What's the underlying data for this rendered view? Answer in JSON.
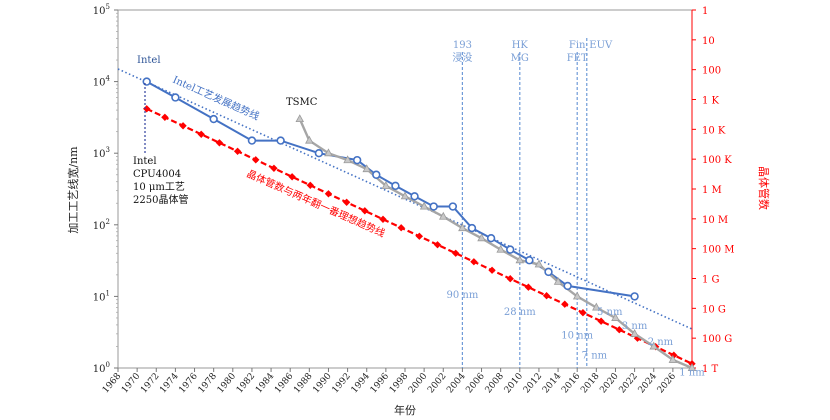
{
  "chart_data": {
    "type": "line",
    "xlabel": "年份",
    "ylabel_left": "加工工艺线宽/nm",
    "ylabel_right": "晶体管数",
    "xlim": [
      1968,
      2028
    ],
    "ylim_log10": [
      0,
      5
    ],
    "x_ticks": [
      "1968",
      "1970",
      "1972",
      "1974",
      "1976",
      "1978",
      "1980",
      "1982",
      "1984",
      "1986",
      "1988",
      "1990",
      "1992",
      "1994",
      "1996",
      "1998",
      "2000",
      "2002",
      "2004",
      "2006",
      "2008",
      "2010",
      "2012",
      "2014",
      "2016",
      "2018",
      "2020",
      "2022",
      "2024",
      "2026"
    ],
    "y_ticks_left": [
      {
        "base": "10",
        "exp": "0",
        "log": 0
      },
      {
        "base": "10",
        "exp": "1",
        "log": 1
      },
      {
        "base": "10",
        "exp": "2",
        "log": 2
      },
      {
        "base": "10",
        "exp": "3",
        "log": 3
      },
      {
        "base": "10",
        "exp": "4",
        "log": 4
      },
      {
        "base": "10",
        "exp": "5",
        "log": 5
      }
    ],
    "y_ticks_right": [
      {
        "label": "1",
        "log": 5
      },
      {
        "label": "10",
        "log": 4.5833
      },
      {
        "label": "100",
        "log": 4.1667
      },
      {
        "label": "1 K",
        "log": 3.75
      },
      {
        "label": "10 K",
        "log": 3.3333
      },
      {
        "label": "100 K",
        "log": 2.9167
      },
      {
        "label": "1 M",
        "log": 2.5
      },
      {
        "label": "10 M",
        "log": 2.0833
      },
      {
        "label": "100 M",
        "log": 1.6667
      },
      {
        "label": "1 G",
        "log": 1.25
      },
      {
        "label": "10 G",
        "log": 0.8333
      },
      {
        "label": "100 G",
        "log": 0.4167
      },
      {
        "label": "1 T",
        "log": 0
      }
    ],
    "series": [
      {
        "name": "Intel",
        "color": "#4472c4",
        "x": [
          1971,
          1974,
          1978,
          1982,
          1985,
          1989,
          1993,
          1995,
          1997,
          1999,
          2001,
          2003,
          2005,
          2007,
          2009,
          2011,
          2013,
          2015,
          2022
        ],
        "y": [
          10000,
          6000,
          3000,
          1500,
          1500,
          1000,
          800,
          500,
          350,
          250,
          180,
          180,
          90,
          65,
          45,
          32,
          22,
          14,
          10
        ]
      },
      {
        "name": "TSMC",
        "color": "#a6a6a6",
        "x": [
          1987,
          1988,
          1990,
          1992,
          1994,
          1996,
          1998,
          2000,
          2002,
          2004,
          2006,
          2008,
          2010,
          2012,
          2014,
          2016,
          2018,
          2020,
          2022,
          2024,
          2026,
          2028
        ],
        "y": [
          3000,
          1500,
          1000,
          800,
          600,
          350,
          250,
          180,
          130,
          90,
          65,
          45,
          32,
          28,
          16,
          10,
          7,
          5,
          3,
          2,
          1.3,
          1
        ]
      }
    ],
    "trend_lines": [
      {
        "name": "Intel工艺发展趋势线",
        "color": "#4472c4",
        "style": "dotted",
        "x": [
          1968,
          2028
        ],
        "y": [
          15000,
          3.5
        ]
      },
      {
        "name": "晶体管数与两年翻一番理想趋势线",
        "color": "#ff0000",
        "style": "dashed",
        "x": [
          1971,
          2028
        ],
        "log_y": [
          3.62,
          0.06
        ]
      }
    ],
    "technology_markers": [
      {
        "year": 2004,
        "lines": [
          "193",
          "浸没"
        ]
      },
      {
        "year": 2010,
        "lines": [
          "HK",
          "MG"
        ]
      },
      {
        "year": 2016,
        "lines": [
          "Fin",
          "FET"
        ]
      },
      {
        "year": 2017,
        "lines": [
          "EUV"
        ]
      }
    ],
    "node_annotations": [
      {
        "text": "90 nm",
        "x": 2004,
        "y": 9.5
      },
      {
        "text": "28 nm",
        "x": 2010,
        "y": 5.5
      },
      {
        "text": "10 nm",
        "x": 2016,
        "y": 2.6
      },
      {
        "text": "7 nm",
        "x": 2017.8,
        "y": 1.35
      },
      {
        "text": "5 nm",
        "x": 2019.4,
        "y": 5.5
      },
      {
        "text": "3 nm",
        "x": 2022,
        "y": 3.5
      },
      {
        "text": "2 nm",
        "x": 2024.7,
        "y": 2.1
      },
      {
        "text": "1 nm",
        "x": 2028,
        "y": 0.78
      }
    ],
    "annotations": {
      "intel_label": "Intel",
      "tsmc_label": "TSMC",
      "intel_trend_label": "Intel工艺发展趋势线",
      "ideal_trend_label": "晶体管数与两年翻一番理想趋势线",
      "cpu4004_lines": [
        "Intel",
        "CPU4004",
        "10 μm工艺",
        "2250晶体管"
      ]
    }
  }
}
